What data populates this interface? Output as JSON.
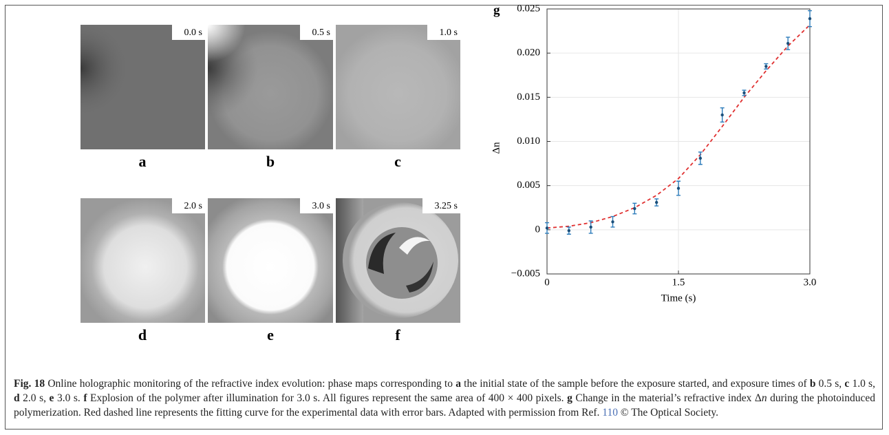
{
  "panels": [
    {
      "label": "a",
      "time": "0.0 s"
    },
    {
      "label": "b",
      "time": "0.5 s"
    },
    {
      "label": "c",
      "time": "1.0 s"
    },
    {
      "label": "d",
      "time": "2.0 s"
    },
    {
      "label": "e",
      "time": "3.0 s"
    },
    {
      "label": "f",
      "time": "3.25 s"
    }
  ],
  "chart_data": {
    "type": "scatter",
    "panel_label": "g",
    "x_label": "Time (s)",
    "y_label": "Δn",
    "x": [
      0,
      0.25,
      0.5,
      0.75,
      1.0,
      1.25,
      1.5,
      1.75,
      2.0,
      2.25,
      2.5,
      2.75,
      3.0
    ],
    "values": [
      0.0002,
      -0.0001,
      0.0003,
      0.0009,
      0.0024,
      0.0031,
      0.0047,
      0.0081,
      0.013,
      0.0155,
      0.0185,
      0.0211,
      0.0239
    ],
    "errors": [
      0.0006,
      0.0004,
      0.0007,
      0.0006,
      0.0006,
      0.0004,
      0.0008,
      0.0007,
      0.0008,
      0.0003,
      0.0003,
      0.0007,
      0.0009
    ],
    "color": "#2b7bba",
    "fit": {
      "type": "line",
      "x": [
        0,
        0.25,
        0.5,
        0.75,
        1.0,
        1.25,
        1.5,
        1.75,
        2.0,
        2.25,
        2.5,
        2.75,
        3.0
      ],
      "values": [
        0.0002,
        0.0004,
        0.0008,
        0.0015,
        0.0025,
        0.0039,
        0.0058,
        0.0085,
        0.0117,
        0.015,
        0.018,
        0.0208,
        0.0232
      ],
      "color": "#e03030",
      "dashed": true
    },
    "xlim": [
      0,
      3.0
    ],
    "ylim": [
      -0.005,
      0.025
    ],
    "xticks": [
      0,
      1.5,
      {
        "value": 3.0,
        "label": "3.0"
      }
    ],
    "yticks": [
      {
        "value": -0.005,
        "label": "−0.005"
      },
      0,
      0.005,
      {
        "value": 0.01,
        "label": "0.010"
      },
      0.015,
      {
        "value": 0.02,
        "label": "0.020"
      },
      0.025
    ],
    "grid": true
  },
  "caption": [
    "Fig. 18",
    " Online holographic monitoring of the refractive index evolution: phase maps corresponding to ",
    "a",
    " the initial state of the sample before the exposure started, and exposure times of ",
    "b",
    " 0.5 s, ",
    "c",
    " 1.0 s, ",
    "d",
    " 2.0 s, ",
    "e",
    " 3.0 s. ",
    "f",
    " Explosion of the polymer after illumination for 3.0 s. All figures represent the same area of 400 × 400 pixels. ",
    "g",
    " Change in the material’s refractive index Δ",
    "n",
    " during the photoinduced polymerization. Red dashed line represents the fitting curve for the experimental data with error bars. Adapted with permission from Ref. ",
    "110",
    " © The Optical Society."
  ]
}
